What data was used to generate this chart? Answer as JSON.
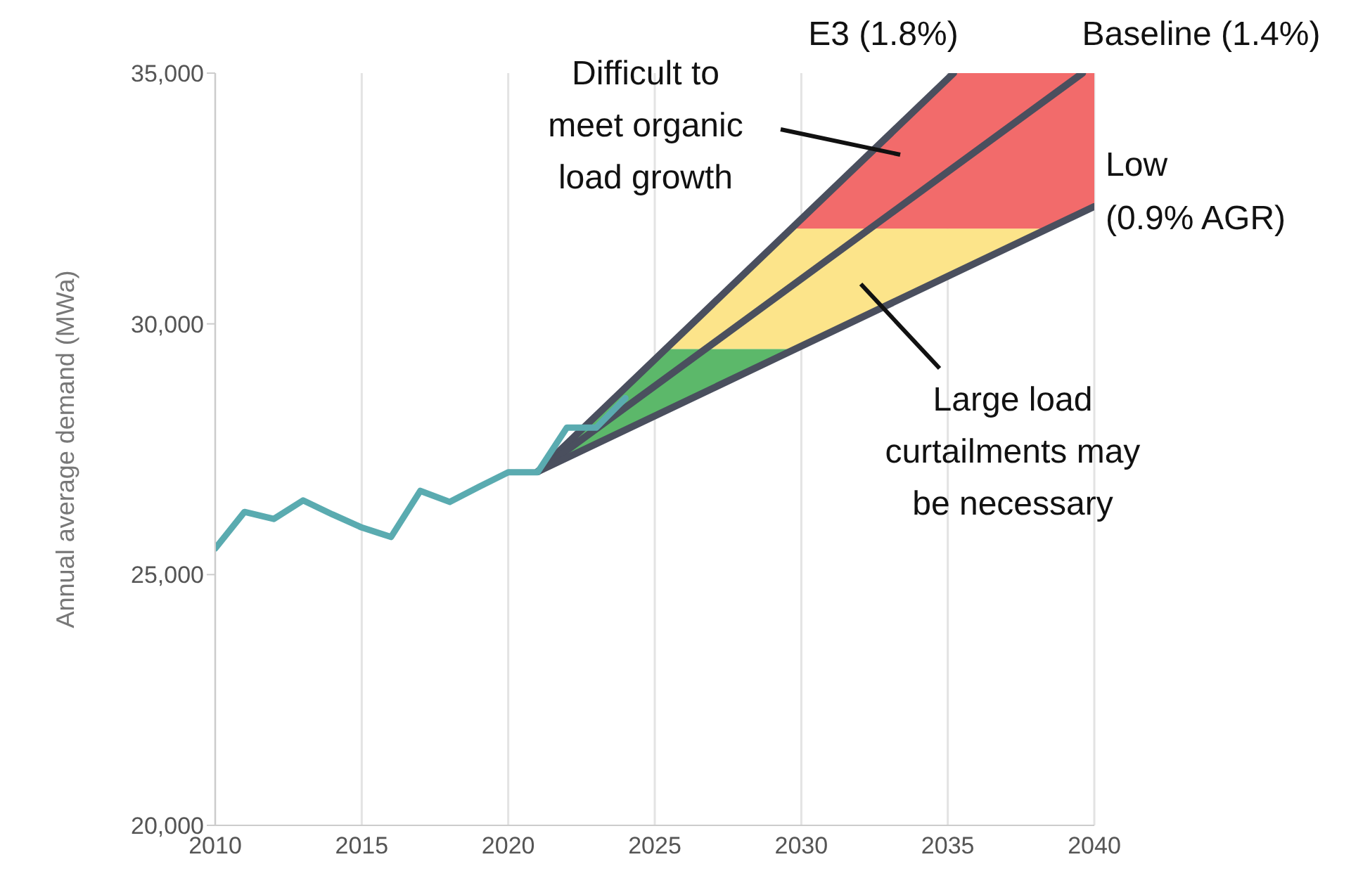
{
  "chart_data": {
    "type": "line",
    "ylabel": "Annual average demand (MWa)",
    "xlim": [
      2010,
      2040
    ],
    "xticks": [
      2010,
      2015,
      2020,
      2025,
      2030,
      2035,
      2040
    ],
    "ylim": [
      20000,
      35000
    ],
    "yticks": [
      {
        "value": 20000,
        "label": "20,000"
      },
      {
        "value": 25000,
        "label": "25,000"
      },
      {
        "value": 30000,
        "label": "30,000"
      },
      {
        "value": 35000,
        "label": "35,000"
      }
    ],
    "grid": "x",
    "marker": "none",
    "line_style": "solid",
    "series": [
      {
        "color": "#5aabb0",
        "x": [
          2010,
          2011,
          2012,
          2013,
          2014,
          2015,
          2016,
          2017,
          2018,
          2019,
          2020,
          2021,
          2022,
          2023,
          2024
        ],
        "values": [
          25520,
          26250,
          26110,
          26480,
          26200,
          25940,
          25750,
          26670,
          26450,
          26750,
          27040,
          27040,
          27930,
          27930,
          28520
        ]
      },
      {
        "name": "E3 (1.8%)",
        "color": "#4a4f5e",
        "x": [
          2021,
          2035.2
        ],
        "values": [
          27050,
          35000
        ]
      },
      {
        "name": "Baseline (1.4%)",
        "color": "#4a4f5e",
        "x": [
          2021,
          2039.6
        ],
        "values": [
          27050,
          35000
        ]
      },
      {
        "name": "Low\n(0.9% AGR)",
        "color": "#4a4f5e",
        "x": [
          2021,
          2040
        ],
        "values": [
          27050,
          32340
        ]
      }
    ],
    "bands": [
      {
        "axis": "y",
        "from": 27050,
        "to": 29500,
        "color": "#5cb86a"
      },
      {
        "axis": "y",
        "from": 29500,
        "to": 31900,
        "color": "#fce48a"
      },
      {
        "axis": "y",
        "from": 31900,
        "to": 35000,
        "color": "#f26b6b"
      }
    ],
    "annotations": [
      "Difficult to\nmeet organic\nload growth",
      "Large load\ncurtailments may\nbe necessary"
    ]
  }
}
